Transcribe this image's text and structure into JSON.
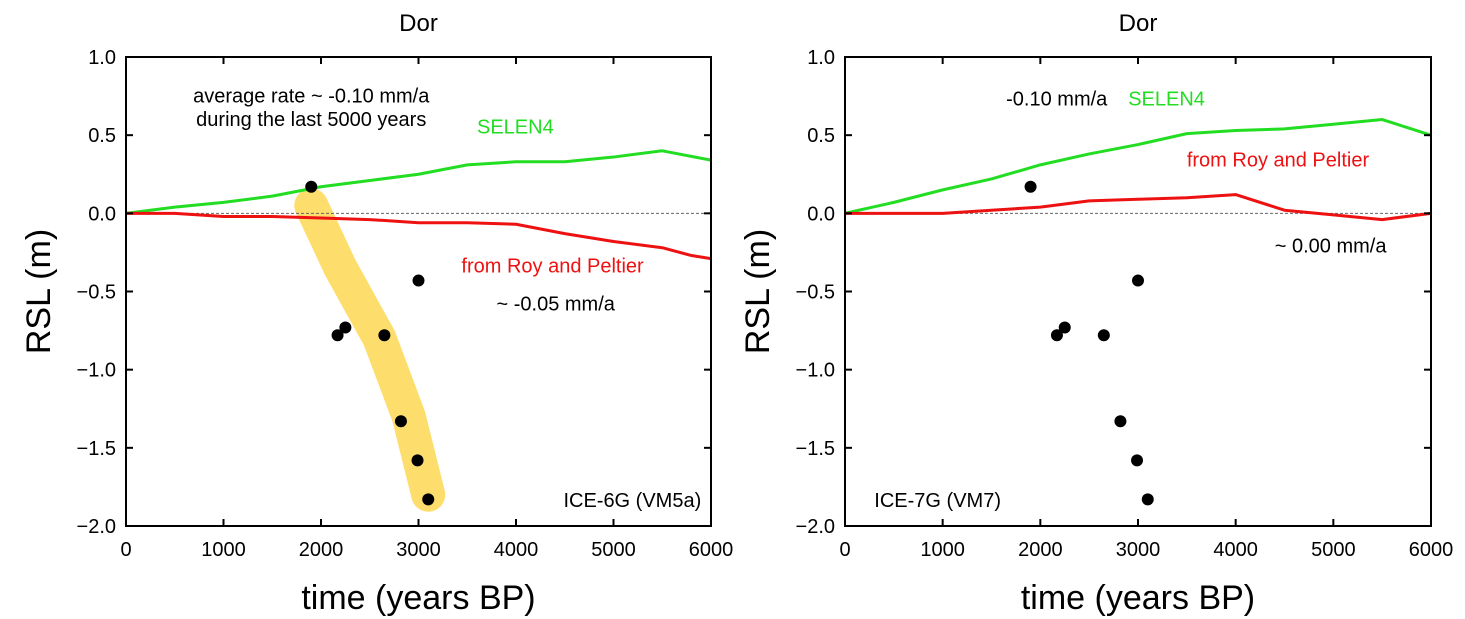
{
  "colors": {
    "selen": "#22dd22",
    "roy": "#ee1111",
    "band": "#fddd6c",
    "points": "#000000",
    "zero_line": "#666666"
  },
  "chart_data": [
    {
      "type": "line",
      "title": "Dor",
      "xlabel": "time (years BP)",
      "ylabel": "RSL (m)",
      "xlim": [
        0,
        6000
      ],
      "ylim": [
        -2.0,
        1.0
      ],
      "xticks": [
        "0",
        "1000",
        "2000",
        "3000",
        "4000",
        "5000",
        "6000"
      ],
      "yticks": [
        "1.0",
        "0.5",
        "0.0",
        "−0.5",
        "−1.0",
        "−1.5",
        "−2.0"
      ],
      "zero_line": true,
      "grid": false,
      "series": [
        {
          "name": "SELEN4",
          "color_key": "selen",
          "x": [
            0,
            500,
            1000,
            1500,
            2000,
            2500,
            3000,
            3500,
            4000,
            4500,
            5000,
            5500,
            6000
          ],
          "y": [
            0.0,
            0.04,
            0.07,
            0.11,
            0.17,
            0.21,
            0.25,
            0.31,
            0.33,
            0.33,
            0.36,
            0.4,
            0.34
          ]
        },
        {
          "name": "from Roy and Peltier",
          "color_key": "roy",
          "x": [
            0,
            500,
            1000,
            1500,
            2000,
            2500,
            3000,
            3500,
            4000,
            4500,
            5000,
            5500,
            5800,
            6000
          ],
          "y": [
            0.0,
            0.0,
            -0.02,
            -0.02,
            -0.03,
            -0.04,
            -0.06,
            -0.06,
            -0.07,
            -0.13,
            -0.18,
            -0.22,
            -0.27,
            -0.29
          ]
        }
      ],
      "points": {
        "x": [
          1900,
          2170,
          2250,
          2650,
          2820,
          2990,
          3000,
          3100
        ],
        "y": [
          0.17,
          -0.78,
          -0.73,
          -0.78,
          -1.33,
          -1.58,
          -0.43,
          -1.83
        ]
      },
      "trend_band": {
        "x": [
          1900,
          2200,
          2600,
          2900,
          3000,
          3100
        ],
        "y": [
          0.05,
          -0.35,
          -0.8,
          -1.3,
          -1.55,
          -1.8
        ]
      },
      "annotations": [
        {
          "text": "average rate ~ -0.10 mm/a",
          "x": 1900,
          "y": 0.71,
          "color_key": "points",
          "anchor": "middle"
        },
        {
          "text": "during the last 5000 years",
          "x": 1900,
          "y": 0.56,
          "color_key": "points",
          "anchor": "middle"
        },
        {
          "text": "SELEN4",
          "x": 3600,
          "y": 0.51,
          "color_key": "selen",
          "anchor": "start"
        },
        {
          "text": "from Roy and Peltier",
          "x": 3440,
          "y": -0.38,
          "color_key": "roy",
          "anchor": "start"
        },
        {
          "text": "~ -0.05 mm/a",
          "x": 3800,
          "y": -0.62,
          "color_key": "points",
          "anchor": "start"
        },
        {
          "text": "ICE-6G (VM5a)",
          "x": 5900,
          "y": -1.88,
          "color_key": "points",
          "anchor": "end"
        }
      ]
    },
    {
      "type": "line",
      "title": "Dor",
      "xlabel": "time (years BP)",
      "ylabel": "RSL (m)",
      "xlim": [
        0,
        6000
      ],
      "ylim": [
        -2.0,
        1.0
      ],
      "xticks": [
        "0",
        "1000",
        "2000",
        "3000",
        "4000",
        "5000",
        "6000"
      ],
      "yticks": [
        "1.0",
        "0.5",
        "0.0",
        "−0.5",
        "−1.0",
        "−1.5",
        "−2.0"
      ],
      "zero_line": true,
      "grid": false,
      "series": [
        {
          "name": "SELEN4",
          "color_key": "selen",
          "x": [
            0,
            500,
            1000,
            1500,
            2000,
            2500,
            3000,
            3500,
            4000,
            4500,
            5000,
            5500,
            6000
          ],
          "y": [
            0.0,
            0.07,
            0.15,
            0.22,
            0.31,
            0.38,
            0.44,
            0.51,
            0.53,
            0.54,
            0.57,
            0.6,
            0.5
          ]
        },
        {
          "name": "from Roy and Peltier",
          "color_key": "roy",
          "x": [
            0,
            500,
            1000,
            1500,
            2000,
            2500,
            3000,
            3500,
            4000,
            4500,
            5000,
            5500,
            6000
          ],
          "y": [
            0.0,
            0.0,
            0.0,
            0.02,
            0.04,
            0.08,
            0.09,
            0.1,
            0.12,
            0.02,
            -0.01,
            -0.04,
            0.0
          ]
        }
      ],
      "points": {
        "x": [
          1900,
          2170,
          2250,
          2650,
          2820,
          2990,
          3000,
          3100
        ],
        "y": [
          0.17,
          -0.78,
          -0.73,
          -0.78,
          -1.33,
          -1.58,
          -0.43,
          -1.83
        ]
      },
      "annotations": [
        {
          "text": "-0.10 mm/a",
          "x": 1650,
          "y": 0.69,
          "color_key": "points",
          "anchor": "start"
        },
        {
          "text": "SELEN4",
          "x": 2900,
          "y": 0.69,
          "color_key": "selen",
          "anchor": "start"
        },
        {
          "text": "from Roy and Peltier",
          "x": 3500,
          "y": 0.3,
          "color_key": "roy",
          "anchor": "start"
        },
        {
          "text": "~ 0.00 mm/a",
          "x": 4400,
          "y": -0.25,
          "color_key": "points",
          "anchor": "start"
        },
        {
          "text": "ICE-7G (VM7)",
          "x": 300,
          "y": -1.88,
          "color_key": "points",
          "anchor": "start"
        }
      ]
    }
  ]
}
